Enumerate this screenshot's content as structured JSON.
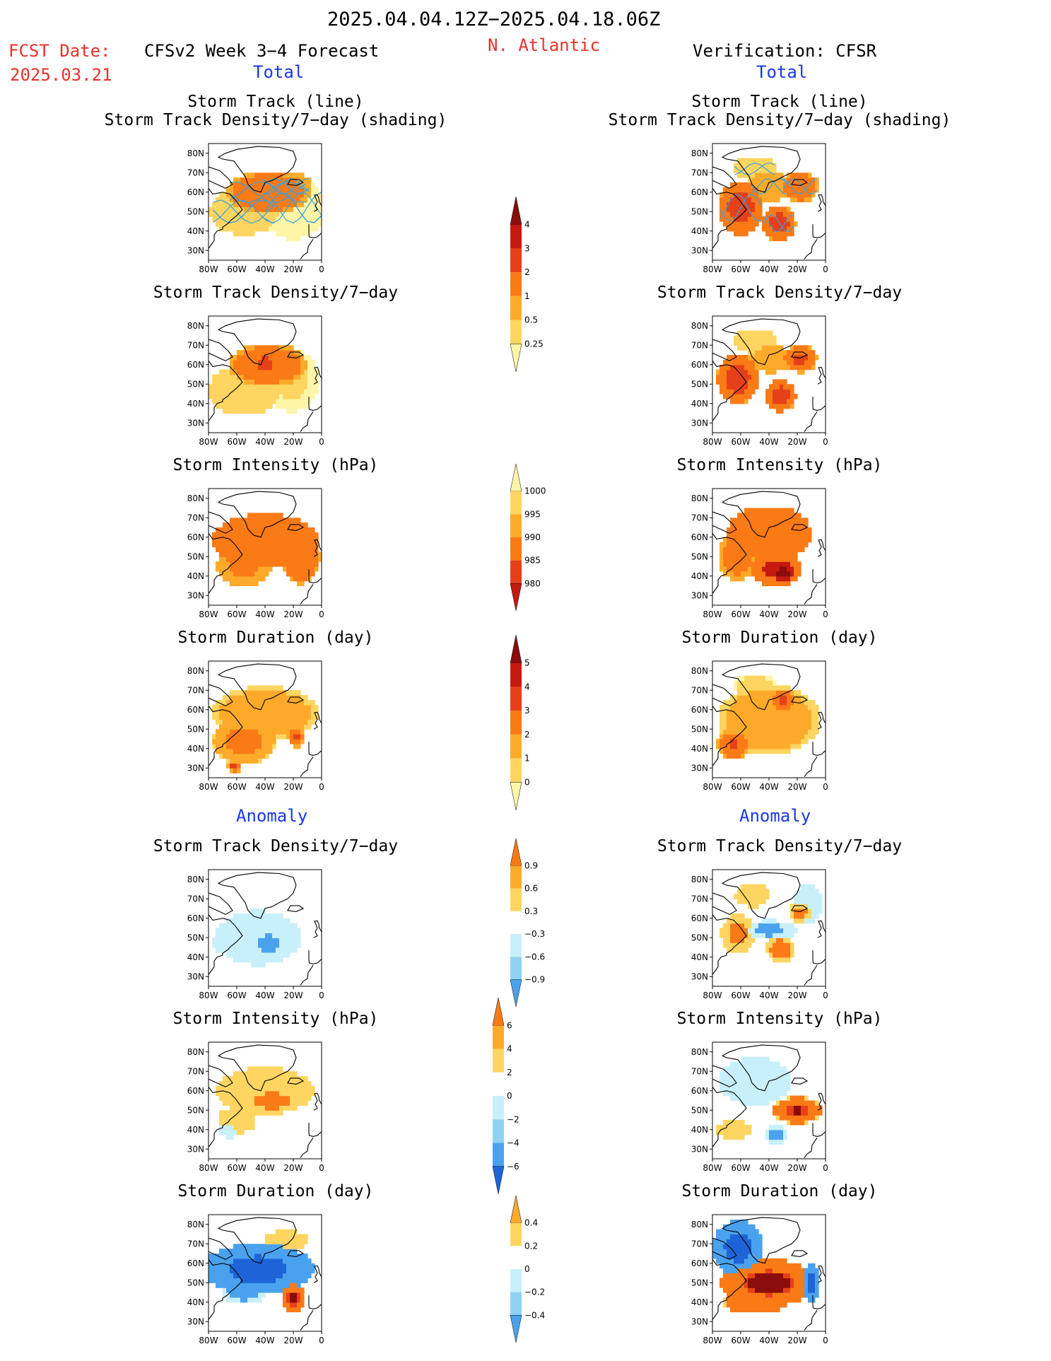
{
  "header": {
    "period": "2025.04.04.12Z−2025.04.18.06Z",
    "fcst_label": "FCST Date:",
    "fcst_date": "2025.03.21",
    "model_title": "CFSv2 Week 3−4 Forecast",
    "region": "N. Atlantic",
    "verification": "Verification: CFSR",
    "total_left": "Total",
    "total_right": "Total",
    "anomaly_left": "Anomaly",
    "anomaly_right": "Anomaly"
  },
  "titles": {
    "track_line": "Storm Track (line)",
    "track_density_shading": "Storm Track Density/7−day (shading)",
    "track_density": "Storm Track Density/7−day",
    "intensity": "Storm Intensity (hPa)",
    "duration": "Storm Duration (day)"
  },
  "axes": {
    "lat_labels": [
      "80N",
      "70N",
      "60N",
      "50N",
      "40N",
      "30N"
    ],
    "lon_labels": [
      "80W",
      "60W",
      "40W",
      "20W",
      "0"
    ]
  },
  "colors": {
    "track_line": "#3aa0dc",
    "coast": "#000000",
    "warm": [
      "#fff5a8",
      "#fdd560",
      "#fdaa2a",
      "#fa7a16",
      "#e6401a",
      "#c41a10",
      "#8a0c0c"
    ],
    "cool": [
      "#c8f0fa",
      "#8fd2f4",
      "#4aa2ee",
      "#1e64d8"
    ]
  },
  "chart_data": [
    {
      "type": "heatmap",
      "side": "forecast",
      "section": "Total",
      "title": "Storm Track (line) / Storm Track Density/7−day (shading)",
      "xlim": [
        -80,
        0
      ],
      "ylim": [
        25,
        85
      ],
      "blobs": [
        {
          "lon": -38,
          "lat": 60,
          "rx": 30,
          "ry": 11,
          "value": 3.0
        },
        {
          "lon": -25,
          "lat": 63,
          "rx": 18,
          "ry": 8,
          "value": 2.0
        },
        {
          "lon": -55,
          "lat": 50,
          "rx": 24,
          "ry": 12,
          "value": 1.0
        },
        {
          "lon": -20,
          "lat": 52,
          "rx": 22,
          "ry": 16,
          "value": 0.5
        }
      ]
    },
    {
      "type": "heatmap",
      "side": "verification",
      "section": "Total",
      "title": "Storm Track (line) / Storm Track Density/7−day (shading)",
      "xlim": [
        -80,
        0
      ],
      "ylim": [
        25,
        85
      ],
      "blobs": [
        {
          "lon": -60,
          "lat": 52,
          "rx": 16,
          "ry": 14,
          "value": 3.5
        },
        {
          "lon": -33,
          "lat": 44,
          "rx": 12,
          "ry": 9,
          "value": 3.5
        },
        {
          "lon": -40,
          "lat": 63,
          "rx": 14,
          "ry": 8,
          "value": 2.0
        },
        {
          "lon": -18,
          "lat": 63,
          "rx": 13,
          "ry": 8,
          "value": 3.0
        },
        {
          "lon": -50,
          "lat": 72,
          "rx": 16,
          "ry": 6,
          "value": 1.0
        }
      ]
    },
    {
      "type": "heatmap",
      "side": "forecast",
      "section": "Total",
      "title": "Storm Track Density/7−day",
      "xlim": [
        -80,
        0
      ],
      "ylim": [
        25,
        85
      ],
      "blobs": [
        {
          "lon": -38,
          "lat": 60,
          "rx": 28,
          "ry": 11,
          "value": 3.0
        },
        {
          "lon": -40,
          "lat": 61,
          "rx": 10,
          "ry": 5,
          "value": 3.6
        },
        {
          "lon": -55,
          "lat": 47,
          "rx": 25,
          "ry": 13,
          "value": 1.0
        },
        {
          "lon": -22,
          "lat": 52,
          "rx": 20,
          "ry": 16,
          "value": 0.6
        }
      ]
    },
    {
      "type": "heatmap",
      "side": "verification",
      "section": "Total",
      "title": "Storm Track Density/7−day",
      "xlim": [
        -80,
        0
      ],
      "ylim": [
        25,
        85
      ],
      "blobs": [
        {
          "lon": -62,
          "lat": 53,
          "rx": 15,
          "ry": 13,
          "value": 3.5
        },
        {
          "lon": -32,
          "lat": 44,
          "rx": 11,
          "ry": 8,
          "value": 3.6
        },
        {
          "lon": -38,
          "lat": 63,
          "rx": 14,
          "ry": 7,
          "value": 2.0
        },
        {
          "lon": -18,
          "lat": 63,
          "rx": 12,
          "ry": 7,
          "value": 3.2
        },
        {
          "lon": -50,
          "lat": 72,
          "rx": 16,
          "ry": 6,
          "value": 1.0
        }
      ]
    },
    {
      "type": "heatmap",
      "side": "forecast",
      "section": "Total",
      "title": "Storm Intensity (hPa)",
      "xlim": [
        -80,
        0
      ],
      "ylim": [
        25,
        85
      ],
      "blobs": [
        {
          "lon": -40,
          "lat": 58,
          "rx": 38,
          "ry": 14,
          "value": 990
        },
        {
          "lon": -55,
          "lat": 45,
          "rx": 20,
          "ry": 10,
          "value": 993
        },
        {
          "lon": -15,
          "lat": 50,
          "rx": 14,
          "ry": 14,
          "value": 991
        }
      ]
    },
    {
      "type": "heatmap",
      "side": "verification",
      "section": "Total",
      "title": "Storm Intensity (hPa)",
      "xlim": [
        -80,
        0
      ],
      "ylim": [
        25,
        85
      ],
      "blobs": [
        {
          "lon": -40,
          "lat": 62,
          "rx": 30,
          "ry": 14,
          "value": 989
        },
        {
          "lon": -35,
          "lat": 44,
          "rx": 18,
          "ry": 9,
          "value": 988
        },
        {
          "lon": -30,
          "lat": 42,
          "rx": 8,
          "ry": 5,
          "value": 983
        },
        {
          "lon": -62,
          "lat": 50,
          "rx": 14,
          "ry": 12,
          "value": 992
        }
      ]
    },
    {
      "type": "heatmap",
      "side": "forecast",
      "section": "Total",
      "title": "Storm Duration (day)",
      "xlim": [
        -80,
        0
      ],
      "ylim": [
        25,
        85
      ],
      "blobs": [
        {
          "lon": -40,
          "lat": 58,
          "rx": 38,
          "ry": 14,
          "value": 3.0
        },
        {
          "lon": -55,
          "lat": 44,
          "rx": 22,
          "ry": 12,
          "value": 3.5
        },
        {
          "lon": -18,
          "lat": 46,
          "rx": 6,
          "ry": 5,
          "value": 4.3
        },
        {
          "lon": -62,
          "lat": 31,
          "rx": 5,
          "ry": 3,
          "value": 4.3
        }
      ]
    },
    {
      "type": "heatmap",
      "side": "verification",
      "section": "Total",
      "title": "Storm Duration (day)",
      "xlim": [
        -80,
        0
      ],
      "ylim": [
        25,
        85
      ],
      "blobs": [
        {
          "lon": -40,
          "lat": 55,
          "rx": 36,
          "ry": 18,
          "value": 3.0
        },
        {
          "lon": -30,
          "lat": 65,
          "rx": 10,
          "ry": 6,
          "value": 4.3
        },
        {
          "lon": -65,
          "lat": 42,
          "rx": 12,
          "ry": 8,
          "value": 4.2
        },
        {
          "lon": -50,
          "lat": 72,
          "rx": 16,
          "ry": 6,
          "value": 1.5
        }
      ]
    },
    {
      "type": "heatmap",
      "side": "forecast",
      "section": "Anomaly",
      "title": "Storm Track Density/7−day",
      "xlim": [
        -80,
        0
      ],
      "ylim": [
        25,
        85
      ],
      "blobs": [
        {
          "lon": -45,
          "lat": 50,
          "rx": 30,
          "ry": 14,
          "value": -0.35
        },
        {
          "lon": -38,
          "lat": 47,
          "rx": 14,
          "ry": 8,
          "value": -0.7
        },
        {
          "lon": -65,
          "lat": 47,
          "rx": 12,
          "ry": 6,
          "value": -0.6
        }
      ]
    },
    {
      "type": "heatmap",
      "side": "verification",
      "section": "Anomaly",
      "title": "Storm Track Density/7−day",
      "xlim": [
        -80,
        0
      ],
      "ylim": [
        25,
        85
      ],
      "blobs": [
        {
          "lon": -62,
          "lat": 52,
          "rx": 12,
          "ry": 10,
          "value": 0.7
        },
        {
          "lon": -32,
          "lat": 44,
          "rx": 10,
          "ry": 7,
          "value": 0.8
        },
        {
          "lon": -40,
          "lat": 54,
          "rx": 20,
          "ry": 5,
          "value": -0.7
        },
        {
          "lon": -52,
          "lat": 72,
          "rx": 12,
          "ry": 6,
          "value": 0.6
        },
        {
          "lon": -18,
          "lat": 63,
          "rx": 8,
          "ry": 5,
          "value": 0.7
        },
        {
          "lon": -12,
          "lat": 68,
          "rx": 10,
          "ry": 10,
          "value": -0.4
        }
      ]
    },
    {
      "type": "heatmap",
      "side": "forecast",
      "section": "Anomaly",
      "title": "Storm Intensity (hPa)",
      "xlim": [
        -80,
        0
      ],
      "ylim": [
        25,
        85
      ],
      "blobs": [
        {
          "lon": -40,
          "lat": 60,
          "rx": 34,
          "ry": 12,
          "value": 3.5
        },
        {
          "lon": -35,
          "lat": 55,
          "rx": 20,
          "ry": 6,
          "value": 5.0
        },
        {
          "lon": -60,
          "lat": 45,
          "rx": 16,
          "ry": 8,
          "value": 1.5
        },
        {
          "lon": -65,
          "lat": 40,
          "rx": 8,
          "ry": 5,
          "value": -1.5
        }
      ]
    },
    {
      "type": "heatmap",
      "side": "verification",
      "section": "Anomaly",
      "title": "Storm Intensity (hPa)",
      "xlim": [
        -80,
        0
      ],
      "ylim": [
        25,
        85
      ],
      "blobs": [
        {
          "lon": -50,
          "lat": 65,
          "rx": 26,
          "ry": 12,
          "value": -2.5
        },
        {
          "lon": -20,
          "lat": 50,
          "rx": 18,
          "ry": 7,
          "value": 6.5
        },
        {
          "lon": -35,
          "lat": 38,
          "rx": 8,
          "ry": 5,
          "value": -5.0
        },
        {
          "lon": -65,
          "lat": 40,
          "rx": 12,
          "ry": 5,
          "value": 4.0
        }
      ]
    },
    {
      "type": "heatmap",
      "side": "forecast",
      "section": "Anomaly",
      "title": "Storm Duration (day)",
      "xlim": [
        -80,
        0
      ],
      "ylim": [
        25,
        85
      ],
      "blobs": [
        {
          "lon": -45,
          "lat": 57,
          "rx": 40,
          "ry": 13,
          "value": -0.4
        },
        {
          "lon": -55,
          "lat": 45,
          "rx": 16,
          "ry": 6,
          "value": -0.25
        },
        {
          "lon": -20,
          "lat": 42,
          "rx": 8,
          "ry": 8,
          "value": 0.4
        },
        {
          "lon": -25,
          "lat": 72,
          "rx": 16,
          "ry": 5,
          "value": 0.2
        }
      ]
    },
    {
      "type": "heatmap",
      "side": "verification",
      "section": "Anomaly",
      "title": "Storm Duration (day)",
      "xlim": [
        -80,
        0
      ],
      "ylim": [
        25,
        85
      ],
      "blobs": [
        {
          "lon": -62,
          "lat": 68,
          "rx": 18,
          "ry": 14,
          "value": -0.4
        },
        {
          "lon": -40,
          "lat": 50,
          "rx": 34,
          "ry": 12,
          "value": 0.4
        },
        {
          "lon": -50,
          "lat": 40,
          "rx": 22,
          "ry": 6,
          "value": 0.35
        },
        {
          "lon": -10,
          "lat": 50,
          "rx": 6,
          "ry": 10,
          "value": -0.4
        }
      ]
    }
  ],
  "colorbars": [
    {
      "name": "track-density-total",
      "labels": [
        "4",
        "3",
        "2",
        "1",
        "0.5",
        "0.25"
      ],
      "levels": [
        0.25,
        0.5,
        1,
        2,
        3,
        4
      ],
      "scheme": "warm"
    },
    {
      "name": "intensity-total",
      "labels": [
        "1000",
        "995",
        "990",
        "985",
        "980"
      ],
      "levels": [
        1000,
        995,
        990,
        985,
        980
      ],
      "scheme": "warm-reversed"
    },
    {
      "name": "duration-total",
      "labels": [
        "5",
        "4",
        "3",
        "2",
        "1",
        "0"
      ],
      "levels": [
        0,
        1,
        2,
        3,
        4,
        5
      ],
      "scheme": "warm"
    },
    {
      "name": "track-density-anom",
      "labels": [
        "0.9",
        "0.6",
        "0.3",
        "−0.3",
        "−0.6",
        "−0.9"
      ],
      "levels": [
        -0.9,
        -0.6,
        -0.3,
        0.3,
        0.6,
        0.9
      ],
      "scheme": "diverging"
    },
    {
      "name": "intensity-anom",
      "labels": [
        "6",
        "4",
        "2",
        "0",
        "−2",
        "−4",
        "−6"
      ],
      "levels": [
        -6,
        -4,
        -2,
        0,
        2,
        4,
        6
      ],
      "scheme": "diverging"
    },
    {
      "name": "duration-anom",
      "labels": [
        "0.4",
        "0.2",
        "0",
        "−0.2",
        "−0.4"
      ],
      "levels": [
        -0.4,
        -0.2,
        0,
        0.2,
        0.4
      ],
      "scheme": "diverging"
    }
  ]
}
